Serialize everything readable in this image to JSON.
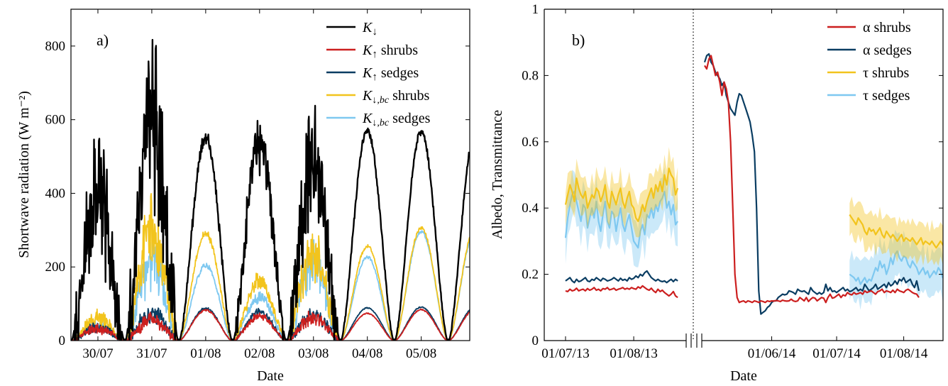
{
  "chart_data": [
    {
      "type": "line",
      "panel_label": "a)",
      "xlabel": "Date",
      "ylabel": "Shortwave radiation (W m⁻²)",
      "ylim": [
        0,
        900
      ],
      "yticks": [
        0,
        200,
        400,
        600,
        800
      ],
      "xlim": [
        0,
        7.4
      ],
      "x_unit": "days since 29/07 12:00",
      "xtick_labels": [
        "30/07",
        "31/07",
        "01/08",
        "02/08",
        "03/08",
        "04/08",
        "05/08"
      ],
      "legend": "top-right",
      "grid": false,
      "colors": {
        "black": "#000000",
        "red": "#cc1f1f",
        "navy": "#0a3d62",
        "gold": "#f2c41d",
        "sky": "#7ec8f0"
      },
      "daily_peaks": {
        "K_down": [
          545,
          765,
          565,
          590,
          610,
          580,
          575
        ],
        "K_up_shrubs": [
          45,
          75,
          85,
          75,
          80,
          75,
          85
        ],
        "K_up_sedges": [
          50,
          95,
          90,
          85,
          85,
          90,
          92
        ],
        "K_down_bc_shrubs": [
          80,
          395,
          300,
          180,
          300,
          260,
          310
        ],
        "K_down_bc_sedges": [
          60,
          280,
          210,
          130,
          270,
          230,
          300
        ]
      },
      "series": [
        {
          "name": "K↓",
          "color": "black"
        },
        {
          "name": "K↑ shrubs",
          "color": "red"
        },
        {
          "name": "K↑ sedges",
          "color": "navy"
        },
        {
          "name": "K↓,bc shrubs",
          "color": "gold"
        },
        {
          "name": "K↓,bc sedges",
          "color": "sky"
        }
      ]
    },
    {
      "type": "line",
      "panel_label": "b)",
      "xlabel": "Date",
      "ylabel": "Albedo, Transmittance",
      "ylim": [
        0,
        1
      ],
      "yticks": [
        0,
        0.2,
        0.4,
        0.6,
        0.8,
        1
      ],
      "ytick_labels": [
        "0",
        "0.2",
        "0.4",
        "0.6",
        "0.8",
        "1"
      ],
      "xtick_labels": [
        "01/07/13",
        "01/08/13",
        "01/06/14",
        "01/07/14",
        "01/08/14"
      ],
      "axis_break": true,
      "legend": "top-right",
      "grid": false,
      "series": [
        {
          "name": "α shrubs",
          "color": "#cc1f1f",
          "segments": [
            {
              "x0": 0,
              "dx": 1,
              "values": [
                0.15,
                0.148,
                0.155,
                0.15,
                0.152,
                0.158,
                0.15,
                0.153,
                0.155,
                0.15,
                0.157,
                0.152,
                0.155,
                0.16,
                0.152,
                0.155,
                0.15,
                0.157,
                0.155,
                0.16,
                0.153,
                0.155,
                0.158,
                0.152,
                0.155,
                0.157,
                0.16,
                0.155,
                0.158,
                0.155,
                0.16,
                0.157,
                0.155,
                0.162,
                0.158,
                0.165,
                0.16,
                0.155,
                0.152,
                0.158,
                0.15,
                0.145,
                0.155,
                0.148,
                0.152,
                0.145,
                0.14,
                0.135,
                0.14,
                0.148,
                0.135,
                0.13
              ]
            },
            {
              "x0": 91,
              "dx": 1,
              "values": [
                0.83,
                0.82,
                0.85,
                0.86,
                0.83,
                0.8,
                0.81,
                0.78,
                0.74,
                0.78,
                0.76,
                0.72,
                0.6,
                0.4,
                0.2,
                0.13,
                0.115,
                0.118,
                0.12,
                0.115,
                0.12,
                0.118,
                0.115,
                0.12,
                0.118,
                0.115,
                0.12,
                0.118,
                0.115,
                0.12,
                0.118,
                0.12,
                0.119,
                0.121,
                0.12,
                0.118,
                0.122,
                0.12,
                0.119,
                0.12,
                0.125,
                0.12,
                0.118,
                0.12,
                0.13,
                0.125,
                0.12,
                0.13,
                0.118,
                0.125,
                0.13,
                0.128,
                0.12,
                0.125,
                0.13,
                0.128,
                0.115,
                0.13,
                0.14,
                0.128,
                0.13,
                0.135,
                0.14,
                0.13,
                0.138,
                0.135,
                0.145,
                0.14,
                0.138,
                0.145,
                0.14,
                0.142,
                0.145,
                0.14,
                0.15,
                0.145,
                0.148,
                0.15,
                0.145,
                0.14,
                0.148,
                0.15,
                0.155,
                0.145,
                0.15,
                0.148,
                0.145,
                0.152,
                0.145,
                0.155,
                0.15,
                0.148,
                0.145,
                0.152,
                0.155,
                0.15,
                0.145,
                0.142,
                0.14,
                0.13
              ]
            }
          ]
        },
        {
          "name": "α sedges",
          "color": "#0a3d62",
          "segments": [
            {
              "x0": 0,
              "dx": 1,
              "values": [
                0.18,
                0.185,
                0.19,
                0.18,
                0.175,
                0.185,
                0.178,
                0.18,
                0.185,
                0.19,
                0.18,
                0.178,
                0.185,
                0.182,
                0.19,
                0.185,
                0.18,
                0.188,
                0.185,
                0.18,
                0.182,
                0.185,
                0.19,
                0.185,
                0.18,
                0.188,
                0.182,
                0.185,
                0.18,
                0.19,
                0.185,
                0.188,
                0.195,
                0.19,
                0.2,
                0.195,
                0.205,
                0.21,
                0.2,
                0.19,
                0.185,
                0.18,
                0.185,
                0.18,
                0.178,
                0.18,
                0.175,
                0.18,
                0.185,
                0.178,
                0.185,
                0.18
              ]
            },
            {
              "x0": 91,
              "dx": 1,
              "values": [
                0.84,
                0.86,
                0.865,
                0.84,
                0.83,
                0.81,
                0.8,
                0.79,
                0.77,
                0.78,
                0.74,
                0.72,
                0.7,
                0.69,
                0.68,
                0.72,
                0.745,
                0.74,
                0.72,
                0.7,
                0.68,
                0.66,
                0.62,
                0.57,
                0.4,
                0.15,
                0.08,
                0.085,
                0.09,
                0.1,
                0.105,
                0.115,
                0.12,
                0.12,
                0.13,
                0.135,
                0.14,
                0.138,
                0.14,
                0.15,
                0.148,
                0.145,
                0.14,
                0.155,
                0.15,
                0.148,
                0.15,
                0.145,
                0.14,
                0.16,
                0.15,
                0.145,
                0.14,
                0.145,
                0.14,
                0.145,
                0.17,
                0.15,
                0.16,
                0.148,
                0.15,
                0.145,
                0.15,
                0.155,
                0.16,
                0.15,
                0.155,
                0.148,
                0.15,
                0.155,
                0.16,
                0.15,
                0.155,
                0.15,
                0.17,
                0.16,
                0.15,
                0.155,
                0.16,
                0.17,
                0.155,
                0.16,
                0.165,
                0.17,
                0.16,
                0.175,
                0.165,
                0.17,
                0.18,
                0.17,
                0.185,
                0.18,
                0.19,
                0.175,
                0.18,
                0.185,
                0.17,
                0.16,
                0.18,
                0.15
              ]
            }
          ]
        },
        {
          "name": "τ shrubs",
          "color": "#f2c41d",
          "band_halfwidth": 0.05,
          "segments": [
            {
              "x0": 0,
              "dx": 1,
              "values": [
                0.41,
                0.44,
                0.47,
                0.45,
                0.42,
                0.49,
                0.46,
                0.44,
                0.43,
                0.45,
                0.4,
                0.42,
                0.44,
                0.43,
                0.46,
                0.45,
                0.42,
                0.44,
                0.47,
                0.42,
                0.4,
                0.45,
                0.43,
                0.41,
                0.44,
                0.46,
                0.42,
                0.4,
                0.43,
                0.45,
                0.41,
                0.4,
                0.37,
                0.36,
                0.38,
                0.41,
                0.39,
                0.42,
                0.44,
                0.46,
                0.43,
                0.47,
                0.45,
                0.48,
                0.45,
                0.5,
                0.47,
                0.52,
                0.5,
                0.49,
                0.44,
                0.46
              ]
            },
            {
              "x0": 158,
              "dx": 1,
              "values": [
                0.38,
                0.37,
                0.36,
                0.35,
                0.37,
                0.36,
                0.35,
                0.33,
                0.32,
                0.34,
                0.33,
                0.335,
                0.32,
                0.33,
                0.34,
                0.32,
                0.31,
                0.33,
                0.32,
                0.31,
                0.32,
                0.31,
                0.3,
                0.31,
                0.32,
                0.3,
                0.31,
                0.305,
                0.3,
                0.31,
                0.3,
                0.29,
                0.3,
                0.31,
                0.29,
                0.3,
                0.295,
                0.29,
                0.3,
                0.29,
                0.28,
                0.29,
                0.3,
                0.29,
                0.28,
                0.29,
                0.28,
                0.29,
                0.3,
                0.3
              ]
            }
          ]
        },
        {
          "name": "τ sedges",
          "color": "#7ec8f0",
          "band_halfwidth": 0.06,
          "segments": [
            {
              "x0": 0,
              "dx": 1,
              "values": [
                0.31,
                0.37,
                0.41,
                0.44,
                0.45,
                0.42,
                0.39,
                0.36,
                0.41,
                0.4,
                0.34,
                0.37,
                0.4,
                0.37,
                0.42,
                0.36,
                0.33,
                0.38,
                0.42,
                0.36,
                0.34,
                0.39,
                0.38,
                0.33,
                0.37,
                0.4,
                0.35,
                0.33,
                0.36,
                0.38,
                0.34,
                0.3,
                0.29,
                0.28,
                0.33,
                0.35,
                0.32,
                0.38,
                0.37,
                0.4,
                0.37,
                0.41,
                0.39,
                0.42,
                0.43,
                0.45,
                0.4,
                0.42,
                0.38,
                0.41,
                0.35,
                0.36
              ]
            },
            {
              "x0": 158,
              "dx": 1,
              "values": [
                0.2,
                0.195,
                0.19,
                0.18,
                0.19,
                0.17,
                0.18,
                0.19,
                0.175,
                0.185,
                0.18,
                0.2,
                0.22,
                0.21,
                0.24,
                0.22,
                0.23,
                0.2,
                0.22,
                0.25,
                0.23,
                0.26,
                0.27,
                0.25,
                0.24,
                0.255,
                0.25,
                0.23,
                0.22,
                0.24,
                0.23,
                0.22,
                0.2,
                0.21,
                0.22,
                0.2,
                0.21,
                0.19,
                0.2,
                0.21,
                0.2,
                0.22,
                0.21,
                0.19,
                0.2,
                0.21,
                0.2,
                0.22,
                0.215,
                0.22
              ]
            }
          ]
        }
      ],
      "x_domain_note": "day index: 0 = 01/07/13, 91 = 01/05/14; break between 52 and 91"
    }
  ]
}
